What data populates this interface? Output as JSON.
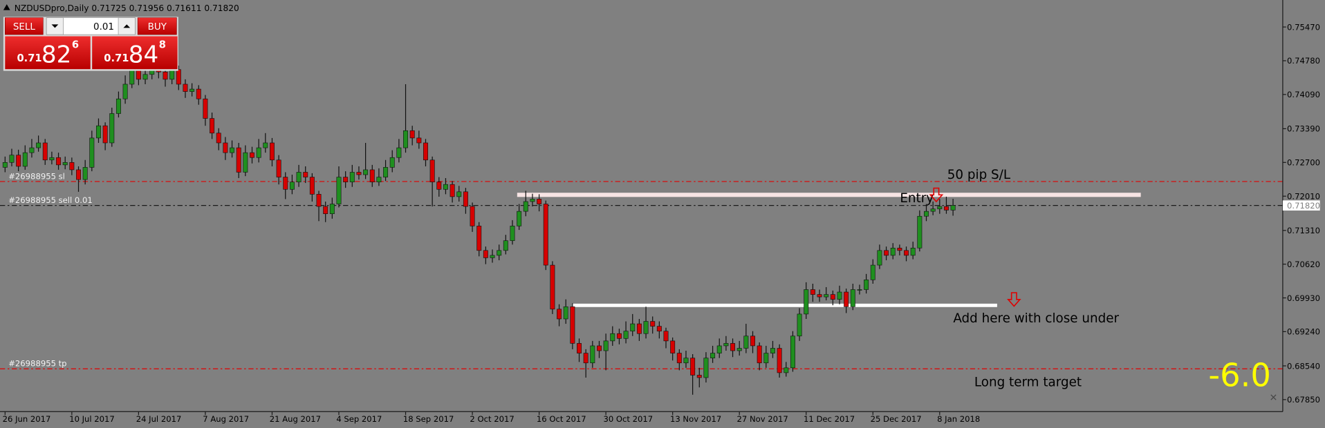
{
  "chart_data": {
    "type": "candlestick",
    "title": "NZDUSDpro,Daily  0.71725 0.71956 0.71611 0.71820",
    "categories": [
      "26 Jun 2017",
      null,
      null,
      null,
      null,
      null,
      null,
      null,
      null,
      null,
      "10 Jul 2017",
      null,
      null,
      null,
      null,
      null,
      null,
      null,
      null,
      null,
      "24 Jul 2017",
      null,
      null,
      null,
      null,
      null,
      null,
      null,
      null,
      null,
      "7 Aug 2017",
      null,
      null,
      null,
      null,
      null,
      null,
      null,
      null,
      null,
      "21 Aug 2017",
      null,
      null,
      null,
      null,
      null,
      null,
      null,
      null,
      null,
      "4 Sep 2017",
      null,
      null,
      null,
      null,
      null,
      null,
      null,
      null,
      null,
      "18 Sep 2017",
      null,
      null,
      null,
      null,
      null,
      null,
      null,
      null,
      null,
      "2 Oct 2017",
      null,
      null,
      null,
      null,
      null,
      null,
      null,
      null,
      null,
      "16 Oct 2017",
      null,
      null,
      null,
      null,
      null,
      null,
      null,
      null,
      null,
      "30 Oct 2017",
      null,
      null,
      null,
      null,
      null,
      null,
      null,
      null,
      null,
      "13 Nov 2017",
      null,
      null,
      null,
      null,
      null,
      null,
      null,
      null,
      null,
      "27 Nov 2017",
      null,
      null,
      null,
      null,
      null,
      null,
      null,
      null,
      null,
      "11 Dec 2017",
      null,
      null,
      null,
      null,
      null,
      null,
      null,
      null,
      null,
      "25 Dec 2017",
      null,
      null,
      null,
      null,
      null,
      null,
      null,
      null,
      null,
      "8 Jan 2018",
      null,
      null
    ],
    "values": [
      [
        0.726,
        0.7282,
        0.725,
        0.727
      ],
      [
        0.727,
        0.7298,
        0.7262,
        0.7285
      ],
      [
        0.7285,
        0.7296,
        0.7252,
        0.7262
      ],
      [
        0.7262,
        0.7305,
        0.7255,
        0.729
      ],
      [
        0.729,
        0.7318,
        0.728,
        0.73
      ],
      [
        0.73,
        0.7325,
        0.7292,
        0.731
      ],
      [
        0.731,
        0.7318,
        0.7265,
        0.7275
      ],
      [
        0.7275,
        0.7292,
        0.7266,
        0.728
      ],
      [
        0.728,
        0.729,
        0.7255,
        0.7265
      ],
      [
        0.7265,
        0.7282,
        0.7256,
        0.727
      ],
      [
        0.727,
        0.728,
        0.7244,
        0.7255
      ],
      [
        0.7255,
        0.7262,
        0.721,
        0.7235
      ],
      [
        0.7235,
        0.7275,
        0.7225,
        0.726
      ],
      [
        0.726,
        0.7335,
        0.7252,
        0.732
      ],
      [
        0.732,
        0.736,
        0.731,
        0.7345
      ],
      [
        0.7345,
        0.7352,
        0.7295,
        0.731
      ],
      [
        0.731,
        0.7382,
        0.7302,
        0.737
      ],
      [
        0.737,
        0.7415,
        0.7362,
        0.74
      ],
      [
        0.74,
        0.7448,
        0.739,
        0.743
      ],
      [
        0.743,
        0.7475,
        0.7422,
        0.746
      ],
      [
        0.746,
        0.747,
        0.7428,
        0.744
      ],
      [
        0.744,
        0.7468,
        0.743,
        0.745
      ],
      [
        0.745,
        0.7485,
        0.744,
        0.747
      ],
      [
        0.747,
        0.748,
        0.7442,
        0.7455
      ],
      [
        0.7455,
        0.7465,
        0.7425,
        0.744
      ],
      [
        0.744,
        0.7472,
        0.743,
        0.746
      ],
      [
        0.746,
        0.7468,
        0.7418,
        0.743
      ],
      [
        0.743,
        0.744,
        0.7402,
        0.7415
      ],
      [
        0.7415,
        0.7432,
        0.7405,
        0.742
      ],
      [
        0.742,
        0.7428,
        0.7388,
        0.74
      ],
      [
        0.74,
        0.7408,
        0.7345,
        0.736
      ],
      [
        0.736,
        0.7372,
        0.7318,
        0.733
      ],
      [
        0.733,
        0.734,
        0.7295,
        0.731
      ],
      [
        0.731,
        0.7322,
        0.7275,
        0.729
      ],
      [
        0.729,
        0.7315,
        0.728,
        0.73
      ],
      [
        0.73,
        0.731,
        0.7238,
        0.725
      ],
      [
        0.725,
        0.7305,
        0.7242,
        0.729
      ],
      [
        0.729,
        0.7302,
        0.7268,
        0.728
      ],
      [
        0.728,
        0.7318,
        0.727,
        0.73
      ],
      [
        0.73,
        0.733,
        0.729,
        0.731
      ],
      [
        0.731,
        0.732,
        0.7262,
        0.7275
      ],
      [
        0.7275,
        0.7285,
        0.7225,
        0.724
      ],
      [
        0.724,
        0.725,
        0.7195,
        0.7215
      ],
      [
        0.7215,
        0.7245,
        0.7205,
        0.723
      ],
      [
        0.723,
        0.7265,
        0.722,
        0.725
      ],
      [
        0.725,
        0.7262,
        0.7228,
        0.724
      ],
      [
        0.724,
        0.7248,
        0.719,
        0.7205
      ],
      [
        0.7205,
        0.7212,
        0.715,
        0.718
      ],
      [
        0.718,
        0.719,
        0.7148,
        0.7165
      ],
      [
        0.7165,
        0.7198,
        0.7155,
        0.7185
      ],
      [
        0.7185,
        0.7262,
        0.7178,
        0.724
      ],
      [
        0.724,
        0.7252,
        0.7218,
        0.723
      ],
      [
        0.723,
        0.7265,
        0.722,
        0.725
      ],
      [
        0.725,
        0.7262,
        0.7235,
        0.7245
      ],
      [
        0.7245,
        0.731,
        0.7236,
        0.7255
      ],
      [
        0.7255,
        0.7265,
        0.722,
        0.723
      ],
      [
        0.723,
        0.7258,
        0.7222,
        0.724
      ],
      [
        0.724,
        0.7275,
        0.7232,
        0.726
      ],
      [
        0.726,
        0.7295,
        0.725,
        0.728
      ],
      [
        0.728,
        0.7318,
        0.727,
        0.73
      ],
      [
        0.73,
        0.743,
        0.729,
        0.7335
      ],
      [
        0.7335,
        0.7345,
        0.7305,
        0.732
      ],
      [
        0.732,
        0.7335,
        0.7298,
        0.731
      ],
      [
        0.731,
        0.7318,
        0.7262,
        0.7275
      ],
      [
        0.7275,
        0.7282,
        0.718,
        0.723
      ],
      [
        0.723,
        0.724,
        0.72,
        0.7215
      ],
      [
        0.7215,
        0.7238,
        0.7205,
        0.7225
      ],
      [
        0.7225,
        0.7232,
        0.7188,
        0.72
      ],
      [
        0.72,
        0.7222,
        0.719,
        0.721
      ],
      [
        0.721,
        0.7218,
        0.7165,
        0.718
      ],
      [
        0.718,
        0.7188,
        0.7128,
        0.714
      ],
      [
        0.714,
        0.7148,
        0.7078,
        0.709
      ],
      [
        0.709,
        0.7098,
        0.7062,
        0.7075
      ],
      [
        0.7075,
        0.7092,
        0.7065,
        0.708
      ],
      [
        0.708,
        0.7102,
        0.707,
        0.709
      ],
      [
        0.709,
        0.7122,
        0.7082,
        0.711
      ],
      [
        0.711,
        0.7152,
        0.7102,
        0.714
      ],
      [
        0.714,
        0.7185,
        0.7132,
        0.717
      ],
      [
        0.717,
        0.7212,
        0.716,
        0.719
      ],
      [
        0.719,
        0.7206,
        0.718,
        0.7195
      ],
      [
        0.7195,
        0.7205,
        0.717,
        0.7185
      ],
      [
        0.7185,
        0.7192,
        0.705,
        0.706
      ],
      [
        0.706,
        0.7068,
        0.696,
        0.697
      ],
      [
        0.697,
        0.698,
        0.6935,
        0.695
      ],
      [
        0.695,
        0.699,
        0.694,
        0.6975
      ],
      [
        0.6975,
        0.6982,
        0.6888,
        0.69
      ],
      [
        0.69,
        0.691,
        0.6862,
        0.688
      ],
      [
        0.688,
        0.6888,
        0.683,
        0.686
      ],
      [
        0.686,
        0.6905,
        0.685,
        0.6895
      ],
      [
        0.6895,
        0.6905,
        0.687,
        0.6885
      ],
      [
        0.6885,
        0.692,
        0.6845,
        0.6905
      ],
      [
        0.6905,
        0.6935,
        0.6895,
        0.692
      ],
      [
        0.692,
        0.693,
        0.6898,
        0.691
      ],
      [
        0.691,
        0.6945,
        0.69,
        0.6925
      ],
      [
        0.6925,
        0.696,
        0.6915,
        0.694
      ],
      [
        0.694,
        0.695,
        0.6905,
        0.692
      ],
      [
        0.692,
        0.6975,
        0.691,
        0.6945
      ],
      [
        0.6945,
        0.6955,
        0.692,
        0.6935
      ],
      [
        0.6935,
        0.6945,
        0.691,
        0.6925
      ],
      [
        0.6925,
        0.6932,
        0.689,
        0.6905
      ],
      [
        0.6905,
        0.6912,
        0.6865,
        0.688
      ],
      [
        0.688,
        0.6888,
        0.6845,
        0.686
      ],
      [
        0.686,
        0.6885,
        0.685,
        0.687
      ],
      [
        0.687,
        0.6878,
        0.6795,
        0.6835
      ],
      [
        0.6835,
        0.685,
        0.681,
        0.683
      ],
      [
        0.683,
        0.6882,
        0.682,
        0.687
      ],
      [
        0.687,
        0.6895,
        0.686,
        0.688
      ],
      [
        0.688,
        0.691,
        0.687,
        0.6895
      ],
      [
        0.6895,
        0.6915,
        0.6885,
        0.69
      ],
      [
        0.69,
        0.691,
        0.6872,
        0.6885
      ],
      [
        0.6885,
        0.6905,
        0.6875,
        0.689
      ],
      [
        0.689,
        0.694,
        0.688,
        0.6915
      ],
      [
        0.6915,
        0.6925,
        0.688,
        0.6895
      ],
      [
        0.6895,
        0.6902,
        0.6845,
        0.686
      ],
      [
        0.686,
        0.6895,
        0.685,
        0.688
      ],
      [
        0.688,
        0.6905,
        0.687,
        0.689
      ],
      [
        0.689,
        0.6898,
        0.683,
        0.684
      ],
      [
        0.684,
        0.6862,
        0.6832,
        0.685
      ],
      [
        0.685,
        0.6925,
        0.6842,
        0.6915
      ],
      [
        0.6915,
        0.6972,
        0.6905,
        0.696
      ],
      [
        0.696,
        0.7025,
        0.695,
        0.701
      ],
      [
        0.701,
        0.7022,
        0.6985,
        0.7
      ],
      [
        0.7,
        0.701,
        0.6985,
        0.6995
      ],
      [
        0.6995,
        0.7015,
        0.6988,
        0.7
      ],
      [
        0.7,
        0.7008,
        0.6978,
        0.699
      ],
      [
        0.699,
        0.7018,
        0.698,
        0.7005
      ],
      [
        0.7005,
        0.7012,
        0.6962,
        0.6975
      ],
      [
        0.6975,
        0.7022,
        0.6968,
        0.701
      ],
      [
        0.701,
        0.702,
        0.7,
        0.701
      ],
      [
        0.701,
        0.7042,
        0.7002,
        0.703
      ],
      [
        0.703,
        0.7072,
        0.7022,
        0.706
      ],
      [
        0.706,
        0.7102,
        0.7052,
        0.709
      ],
      [
        0.709,
        0.7098,
        0.707,
        0.708
      ],
      [
        0.708,
        0.7105,
        0.7072,
        0.7095
      ],
      [
        0.7095,
        0.7102,
        0.708,
        0.709
      ],
      [
        0.709,
        0.7098,
        0.7068,
        0.708
      ],
      [
        0.708,
        0.7108,
        0.7072,
        0.7095
      ],
      [
        0.7095,
        0.7172,
        0.7088,
        0.716
      ],
      [
        0.716,
        0.7185,
        0.715,
        0.717
      ],
      [
        0.717,
        0.719,
        0.7162,
        0.7175
      ],
      [
        0.7175,
        0.7195,
        0.7165,
        0.718
      ],
      [
        0.718,
        0.72,
        0.7165,
        0.71725
      ],
      [
        0.71725,
        0.71956,
        0.71611,
        0.7182
      ]
    ],
    "up_color": "#1f8f1f",
    "down_color": "#d60000",
    "ylim": [
      0.67604,
      0.76022
    ],
    "yticks": [
      {
        "value": 0.7547,
        "label": "0.75470"
      },
      {
        "value": 0.7478,
        "label": "0.74780"
      },
      {
        "value": 0.7409,
        "label": "0.74090"
      },
      {
        "value": 0.7339,
        "label": "0.73390"
      },
      {
        "value": 0.727,
        "label": "0.72700"
      },
      {
        "value": 0.7201,
        "label": "0.72010"
      },
      {
        "value": 0.7131,
        "label": "0.71310"
      },
      {
        "value": 0.7062,
        "label": "0.70620"
      },
      {
        "value": 0.6993,
        "label": "0.69930"
      },
      {
        "value": 0.6924,
        "label": "0.69240"
      },
      {
        "value": 0.6854,
        "label": "0.68540"
      },
      {
        "value": 0.6785,
        "label": "0.67850"
      }
    ],
    "grid": false,
    "levels": [
      {
        "label": "#26988955 sl",
        "value": 0.7231,
        "color": "#e00000"
      },
      {
        "label": "#26988955 sell 0.01",
        "value": 0.7182,
        "color": "#1a1a1a"
      },
      {
        "label": "#26988955 tp",
        "value": 0.6848,
        "color": "#e00000"
      }
    ],
    "price_marker": {
      "value": 0.7182,
      "label": "0.71820"
    },
    "annotations": [
      "50 pip S/L",
      "Entry",
      "Add here with close under",
      "Long term target",
      "-6.0"
    ],
    "trade_panel": {
      "sell": "SELL",
      "lot": "0.01",
      "buy": "BUY",
      "bid": {
        "prefix": "0.71",
        "big": "82",
        "small": "6"
      },
      "ask": {
        "prefix": "0.71",
        "big": "84",
        "small": "8"
      }
    }
  }
}
